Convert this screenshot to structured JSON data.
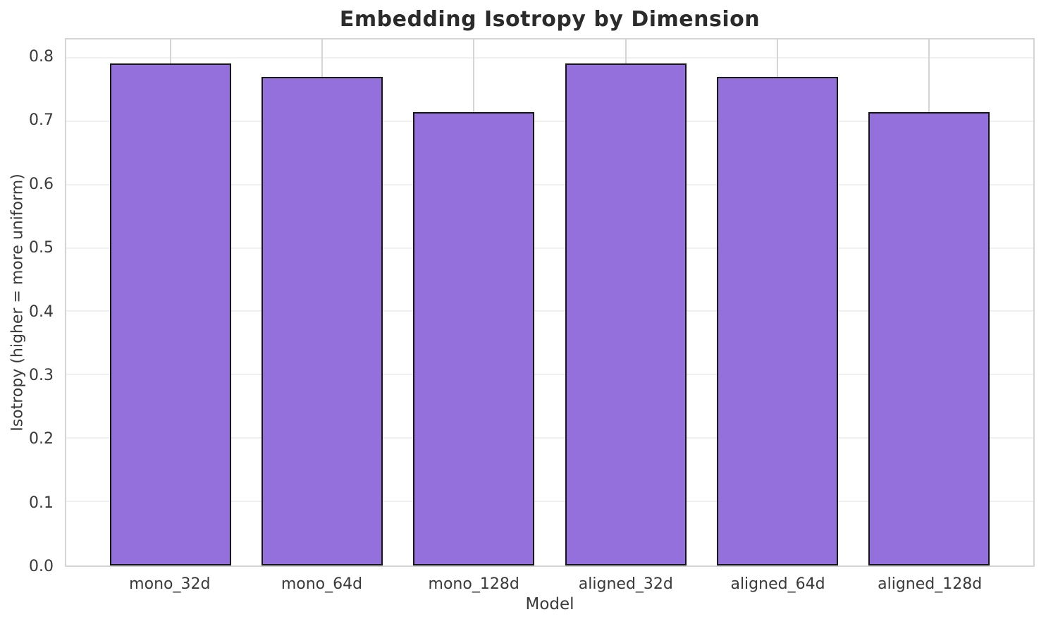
{
  "chart_data": {
    "type": "bar",
    "title": "Embedding Isotropy by Dimension",
    "xlabel": "Model",
    "ylabel": "Isotropy (higher = more uniform)",
    "categories": [
      "mono_32d",
      "mono_64d",
      "mono_128d",
      "aligned_32d",
      "aligned_64d",
      "aligned_128d"
    ],
    "values": [
      0.792,
      0.771,
      0.715,
      0.792,
      0.771,
      0.715
    ],
    "ylim": [
      0,
      0.83
    ],
    "yticks": [
      0.0,
      0.1,
      0.2,
      0.3,
      0.4,
      0.5,
      0.6,
      0.7,
      0.8
    ],
    "ytick_labels": [
      "0.0",
      "0.1",
      "0.2",
      "0.3",
      "0.4",
      "0.5",
      "0.6",
      "0.7",
      "0.8"
    ],
    "grid": true,
    "legend": "none",
    "bar_width_fraction": 0.8,
    "colors": {
      "bar_fill": "#9370DB",
      "bar_edge": "#151515",
      "grid_horizontal": "#f0f0f0",
      "grid_vertical": "#d5d5d5",
      "spine": "#d4d4d4",
      "tick_text": "#3a3a3a",
      "title_text": "#2b2b2b",
      "background": "#ffffff"
    }
  }
}
